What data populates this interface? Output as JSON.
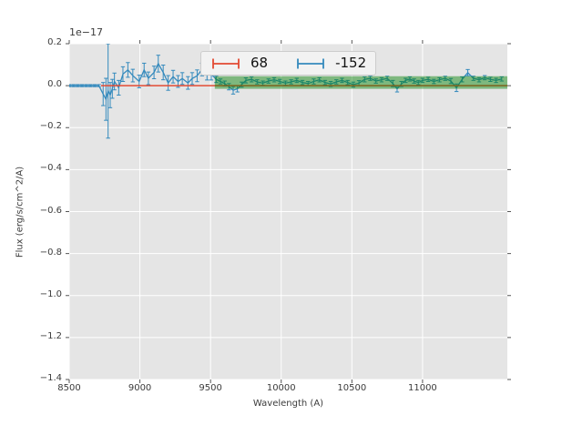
{
  "figure": {
    "background": "#ffffff",
    "plot_background": "#e5e5e5",
    "grid_color": "#ffffff",
    "tick_color": "#555555",
    "text_color": "#3b3b3b"
  },
  "axes": {
    "offset_text": "1e−17",
    "xlabel": "Wavelength (A)",
    "ylabel": "Flux (erg/s/cm^2/A)",
    "xticks": {
      "values": [
        8500,
        9000,
        9500,
        10000,
        10500,
        11000
      ],
      "labels": [
        "8500",
        "9000",
        "9500",
        "10000",
        "10500",
        "11000"
      ]
    },
    "yticks": {
      "values": [
        0.2,
        0.0,
        -0.2,
        -0.4,
        -0.6,
        -0.8,
        -1.0,
        -1.2,
        -1.4
      ],
      "labels": [
        "0.2",
        "0.0",
        "−0.2",
        "−0.4",
        "−0.6",
        "−0.8",
        "−1.0",
        "−1.2",
        "−1.4"
      ]
    }
  },
  "legend": {
    "entries": [
      {
        "label": "68",
        "color": "#e24a33",
        "glyph": "errorbar-icon"
      },
      {
        "label": "-152",
        "color": "#348abd",
        "glyph": "errorbar-icon"
      }
    ]
  },
  "chart_data": {
    "type": "line",
    "title": "",
    "xlabel": "Wavelength (A)",
    "ylabel": "Flux (erg/s/cm^2/A)",
    "unit_multiplier": "1e-17",
    "xlim": [
      8500,
      11600
    ],
    "ylim": [
      -1.4,
      0.2
    ],
    "grid": true,
    "legend_position": "upper center",
    "series": [
      {
        "name": "-152",
        "type": "errorbar_line",
        "color": "#348abd",
        "x": [
          8500,
          8530,
          8560,
          8590,
          8620,
          8650,
          8680,
          8710,
          8740,
          8760,
          8775,
          8790,
          8805,
          8820,
          8850,
          8880,
          8915,
          8950,
          8995,
          9030,
          9060,
          9100,
          9130,
          9165,
          9200,
          9235,
          9270,
          9300,
          9340,
          9370,
          9405,
          9440,
          9475,
          9505,
          9540,
          9570,
          9600,
          9630,
          9660,
          9690,
          9720,
          9750,
          9790,
          9830,
          9870,
          9910,
          9950,
          9990,
          10030,
          10070,
          10110,
          10150,
          10190,
          10230,
          10270,
          10310,
          10350,
          10390,
          10430,
          10470,
          10510,
          10550,
          10590,
          10630,
          10670,
          10710,
          10750,
          10790,
          10820,
          10850,
          10880,
          10910,
          10940,
          10970,
          11000,
          11040,
          11080,
          11120,
          11160,
          11200,
          11240,
          11280,
          11320,
          11360,
          11400,
          11440,
          11480,
          11520,
          11560
        ],
        "y": [
          0,
          0,
          0,
          0,
          0,
          0,
          0,
          0,
          -0.04,
          -0.065,
          -0.025,
          -0.045,
          -0.015,
          0.02,
          -0.01,
          0.055,
          0.075,
          0.048,
          0.02,
          0.075,
          0.035,
          0.063,
          0.105,
          0.063,
          0.013,
          0.043,
          0.02,
          0.034,
          0.013,
          0.034,
          0.047,
          0.077,
          0.055,
          0.055,
          0.03,
          0.02,
          0.01,
          -0.005,
          -0.022,
          -0.015,
          0.005,
          0.025,
          0.03,
          0.018,
          0.012,
          0.022,
          0.028,
          0.02,
          0.012,
          0.018,
          0.025,
          0.015,
          0.01,
          0.02,
          0.028,
          0.015,
          0.008,
          0.018,
          0.025,
          0.015,
          0.005,
          0.012,
          0.03,
          0.035,
          0.022,
          0.028,
          0.035,
          0.01,
          -0.015,
          0.008,
          0.025,
          0.032,
          0.022,
          0.015,
          0.025,
          0.03,
          0.02,
          0.028,
          0.035,
          0.022,
          -0.01,
          0.03,
          0.062,
          0.035,
          0.028,
          0.038,
          0.03,
          0.025,
          0.032
        ],
        "yerr": [
          0.005,
          0.005,
          0.005,
          0.005,
          0.005,
          0.005,
          0.005,
          0.005,
          0.055,
          0.1,
          0.225,
          0.06,
          0.045,
          0.04,
          0.035,
          0.035,
          0.035,
          0.03,
          0.03,
          0.032,
          0.03,
          0.03,
          0.04,
          0.035,
          0.035,
          0.03,
          0.028,
          0.028,
          0.03,
          0.028,
          0.028,
          0.03,
          0.028,
          0.028,
          0.015,
          0.012,
          0.012,
          0.015,
          0.018,
          0.015,
          0.012,
          0.012,
          0.012,
          0.01,
          0.01,
          0.01,
          0.01,
          0.01,
          0.01,
          0.01,
          0.01,
          0.01,
          0.01,
          0.012,
          0.01,
          0.01,
          0.012,
          0.01,
          0.01,
          0.01,
          0.012,
          0.012,
          0.012,
          0.01,
          0.01,
          0.01,
          0.01,
          0.015,
          0.015,
          0.012,
          0.01,
          0.01,
          0.01,
          0.01,
          0.01,
          0.01,
          0.01,
          0.01,
          0.01,
          0.012,
          0.018,
          0.012,
          0.015,
          0.01,
          0.01,
          0.01,
          0.01,
          0.01,
          0.01
        ]
      },
      {
        "name": "68",
        "type": "hline",
        "color": "#e24a33",
        "y": 0.0,
        "x_start": 8725,
        "x_end": 11600
      },
      {
        "name": "overlap-band",
        "type": "fill_between",
        "color": "#008000",
        "alpha": 0.45,
        "x_start": 9530,
        "x_end": 11600,
        "ymin": -0.015,
        "ymax": 0.045
      }
    ]
  }
}
